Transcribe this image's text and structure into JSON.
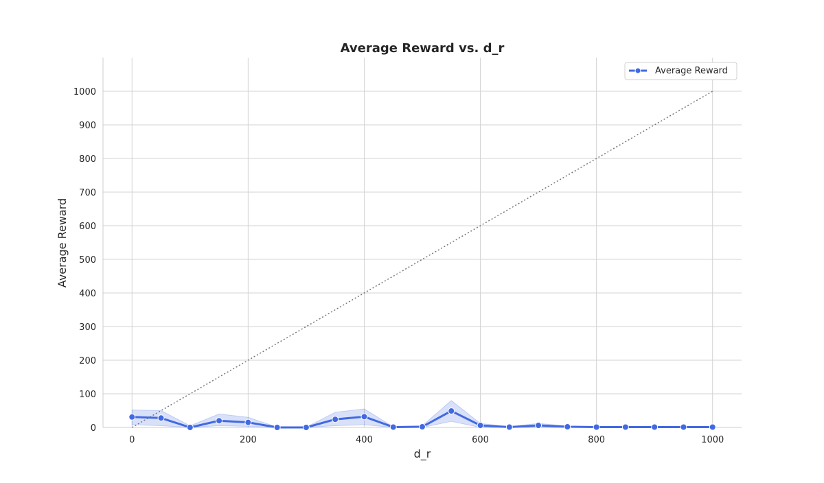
{
  "chart_data": {
    "type": "line",
    "title": "Average Reward vs. d_r",
    "xlabel": "d_r",
    "ylabel": "Average Reward",
    "xlim": [
      -50,
      1050
    ],
    "ylim": [
      0,
      1100
    ],
    "x_ticks": [
      0,
      200,
      400,
      600,
      800,
      1000
    ],
    "y_ticks": [
      0,
      100,
      200,
      300,
      400,
      500,
      600,
      700,
      800,
      900,
      1000
    ],
    "grid": true,
    "legend_position": "top-right",
    "series": [
      {
        "name": "Average Reward",
        "color": "#4169e1",
        "marker": "circle",
        "x": [
          0,
          50,
          100,
          150,
          200,
          250,
          300,
          350,
          400,
          450,
          500,
          550,
          600,
          650,
          700,
          750,
          800,
          850,
          900,
          950,
          1000
        ],
        "values": [
          31,
          28,
          0,
          20,
          15,
          0,
          0,
          24,
          32,
          1,
          2,
          49,
          6,
          1,
          6,
          2,
          1,
          1,
          1,
          1,
          1
        ],
        "band_lower": [
          8,
          5,
          0,
          5,
          3,
          0,
          0,
          5,
          8,
          0,
          0,
          18,
          0,
          0,
          0,
          0,
          0,
          0,
          0,
          0,
          0
        ],
        "band_upper": [
          52,
          50,
          5,
          40,
          30,
          1,
          1,
          45,
          55,
          2,
          5,
          80,
          12,
          2,
          12,
          4,
          2,
          2,
          2,
          2,
          2
        ]
      }
    ],
    "reference_line": {
      "style": "dotted",
      "color": "#777777",
      "x": [
        0,
        1000
      ],
      "y": [
        0,
        1000
      ]
    }
  }
}
